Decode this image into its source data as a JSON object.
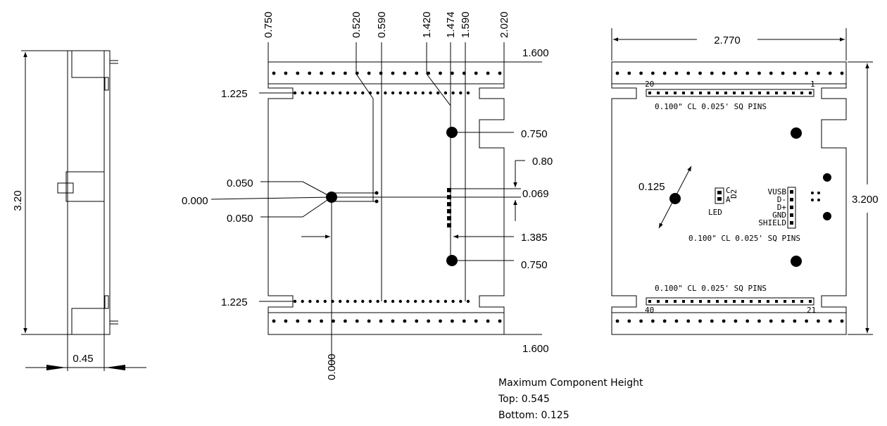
{
  "side_view": {
    "height_label": "3.20",
    "thickness_label": "0.45"
  },
  "middle_view": {
    "top_labels": [
      "0.750",
      "0.520",
      "0.590",
      "1.420",
      "1.474",
      "1.590",
      "2.020"
    ],
    "right_top_label": "1.600",
    "right_bottom_label": "1.600",
    "row_label_top": "1.225",
    "row_label_bottom": "1.225",
    "via_label_upper": "0.750",
    "via_label_lower": "0.750",
    "width_080_label": "0.80",
    "width_069_label": "0.069",
    "x_1385_label": "1.385",
    "left_050_upper": "0.050",
    "left_000": "0.000",
    "left_050_lower": "0.050",
    "bottom_000": "0.000"
  },
  "right_view": {
    "width_label": "2.770",
    "height_label": "3.200",
    "hole_label": "0.125",
    "pin_numbers": {
      "top_left": "20",
      "top_right": "1",
      "bottom_left": "40",
      "bottom_right": "21"
    },
    "pin_note_top": "0.100\" CL  0.025' SQ PINS",
    "pin_note_mid": "0.100\" CL  0.025' SQ PINS",
    "pin_note_bottom": "0.100\" CL  0.025' SQ PINS",
    "led_label": "LED",
    "led_c": "C",
    "led_a": "A",
    "led_ref": "D2",
    "usb_labels": [
      "VUSB",
      "D-",
      "D+",
      "GND",
      "SHIELD"
    ]
  },
  "notes": {
    "title": "Maximum Component Height",
    "top": "Top: 0.545",
    "bottom": "Bottom: 0.125"
  }
}
